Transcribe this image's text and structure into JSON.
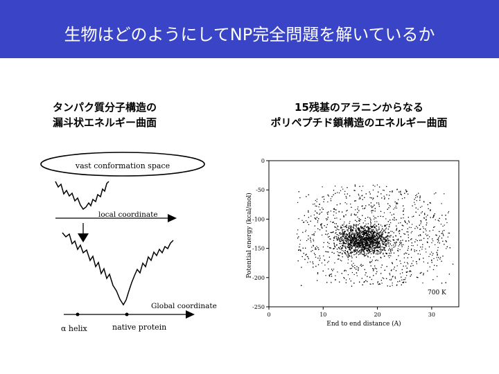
{
  "title": "生物はどのようにしてNP完全問題を解いているか",
  "left_panel": {
    "caption_line1": "タンパク質分子構造の",
    "caption_line2": "漏斗状エネルギー曲面",
    "ellipse_label": "vast conformation space",
    "local_label": "local coordinate",
    "global_label": "Global coordinate",
    "alpha_label": "α helix",
    "native_label": "native protein"
  },
  "right_panel": {
    "caption_line1": "15残基のアラニンからなる",
    "caption_line2": "ポリペプチド鎖構造のエネルギー曲面",
    "annotation": "700 K"
  },
  "chart_data": {
    "type": "scatter",
    "xlabel": "End to end distance (A)",
    "ylabel": "Potential energy (kcal/mol)",
    "xlim": [
      0,
      35
    ],
    "ylim": [
      -250,
      0
    ],
    "xticks": [
      0,
      10,
      20,
      30
    ],
    "yticks": [
      0,
      -50,
      -100,
      -150,
      -200,
      -250
    ],
    "xtick_labels": [
      "0",
      "10",
      "20",
      "30"
    ],
    "ytick_labels": [
      "0",
      "-50",
      "-100",
      "-150",
      "-200",
      "-250"
    ],
    "point_cloud": {
      "x_range": [
        5,
        34
      ],
      "y_range": [
        -215,
        -40
      ],
      "densest_region": {
        "x": [
          10,
          25
        ],
        "y": [
          -170,
          -100
        ]
      },
      "approx_points": 4500
    }
  }
}
